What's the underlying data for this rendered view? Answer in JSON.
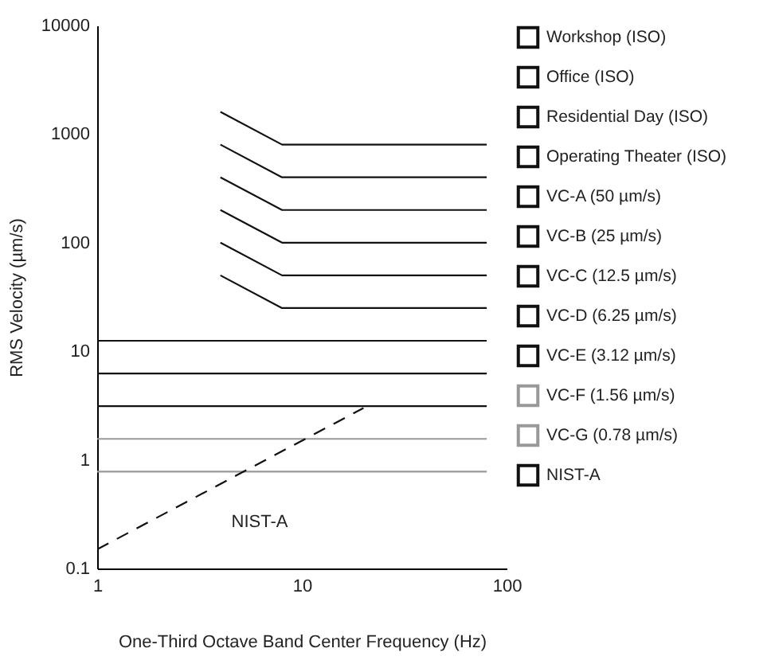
{
  "chart_data": {
    "type": "line",
    "xlabel": "One-Third Octave Band Center Frequency (Hz)",
    "ylabel": "RMS Velocity (µm/s)",
    "log": "xy",
    "xlim": [
      1,
      100
    ],
    "xticks": [
      1,
      10,
      100
    ],
    "ylim": [
      0.1,
      10000
    ],
    "yticks": [
      0.1,
      1,
      10,
      100,
      1000,
      10000
    ],
    "grid": false,
    "legend": "right",
    "marker": "none",
    "annotations": [
      "NIST-A"
    ],
    "series": [
      {
        "name": "Workshop (ISO)",
        "color": "#111111",
        "x": [
          4,
          8,
          80
        ],
        "values": [
          1600,
          800,
          800
        ]
      },
      {
        "name": "Office (ISO)",
        "color": "#111111",
        "x": [
          4,
          8,
          80
        ],
        "values": [
          800,
          400,
          400
        ]
      },
      {
        "name": "Residential Day (ISO)",
        "color": "#111111",
        "x": [
          4,
          8,
          80
        ],
        "values": [
          400,
          200,
          200
        ]
      },
      {
        "name": "Operating Theater (ISO)",
        "color": "#111111",
        "x": [
          4,
          8,
          80
        ],
        "values": [
          200,
          100,
          100
        ]
      },
      {
        "name": "VC-A (50 µm/s)",
        "color": "#111111",
        "x": [
          4,
          8,
          80
        ],
        "values": [
          100,
          50,
          50
        ]
      },
      {
        "name": "VC-B (25 µm/s)",
        "color": "#111111",
        "x": [
          4,
          8,
          80
        ],
        "values": [
          50,
          25,
          25
        ]
      },
      {
        "name": "VC-C (12.5 µm/s)",
        "color": "#111111",
        "x": [
          1,
          80
        ],
        "values": [
          12.5,
          12.5
        ]
      },
      {
        "name": "VC-D (6.25 µm/s)",
        "color": "#111111",
        "x": [
          1,
          80
        ],
        "values": [
          6.25,
          6.25
        ]
      },
      {
        "name": "VC-E (3.12 µm/s)",
        "color": "#111111",
        "x": [
          1,
          80
        ],
        "values": [
          3.12,
          3.12
        ]
      },
      {
        "name": "VC-F (1.56 µm/s)",
        "color": "#999999",
        "x": [
          1,
          80
        ],
        "values": [
          1.56,
          1.56
        ]
      },
      {
        "name": "VC-G (0.78 µm/s)",
        "color": "#999999",
        "x": [
          1,
          80
        ],
        "values": [
          0.78,
          0.78
        ]
      },
      {
        "name": "NIST-A",
        "color": "#111111",
        "line_style": "dashed",
        "x": [
          1,
          20
        ],
        "values": [
          0.15,
          3
        ]
      }
    ]
  }
}
